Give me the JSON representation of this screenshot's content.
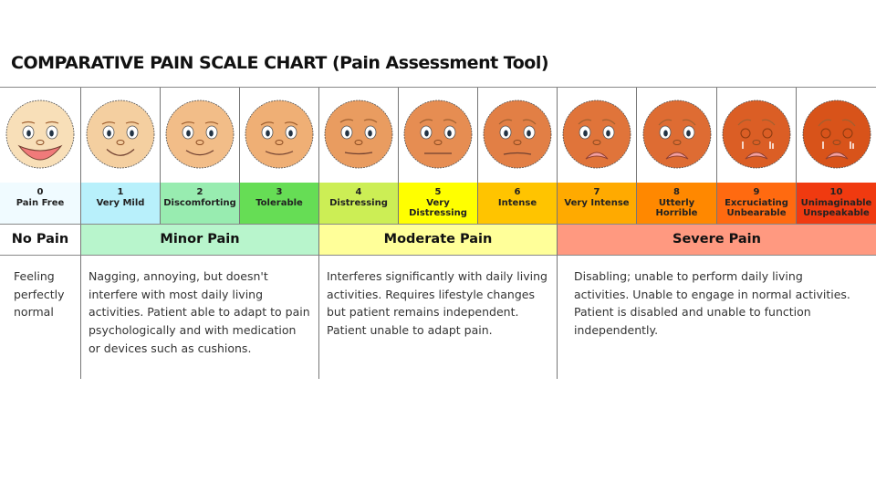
{
  "title": "COMPARATIVE PAIN SCALE CHART (Pain Assessment Tool)",
  "levels": [
    {
      "num": "0",
      "label": "Pain Free",
      "bg": "#f0fbff",
      "face": "#f8dfb8"
    },
    {
      "num": "1",
      "label": "Very Mild",
      "bg": "#b8f0fb",
      "face": "#f4cfa0"
    },
    {
      "num": "2",
      "label": "Discomforting",
      "bg": "#98ecb0",
      "face": "#f2bd88"
    },
    {
      "num": "3",
      "label": "Tolerable",
      "bg": "#66dd55",
      "face": "#efaf75"
    },
    {
      "num": "4",
      "label": "Distressing",
      "bg": "#ccee55",
      "face": "#e99c60"
    },
    {
      "num": "5",
      "label": "Very Distressing",
      "bg": "#ffff00",
      "face": "#e68d52"
    },
    {
      "num": "6",
      "label": "Intense",
      "bg": "#ffc400",
      "face": "#e27f45"
    },
    {
      "num": "7",
      "label": "Very Intense",
      "bg": "#ffaa00",
      "face": "#e0743a"
    },
    {
      "num": "8",
      "label": "Utterly Horrible",
      "bg": "#ff8800",
      "face": "#de6c33"
    },
    {
      "num": "9",
      "label": "Excruciating Unbearable",
      "bg": "#ff6a10",
      "face": "#db5e25"
    },
    {
      "num": "10",
      "label": "Unimaginable Unspeakable",
      "bg": "#f03a10",
      "face": "#d8531a"
    }
  ],
  "categories": [
    {
      "label": "No Pain",
      "bg": "#ffffff",
      "description": "Feeling perfectly normal"
    },
    {
      "label": "Minor Pain",
      "bg": "#b8f5cc",
      "description": "Nagging, annoying, but doesn't interfere with most daily living activities. Patient able to adapt to pain psychologically and with medication or devices such as cushions."
    },
    {
      "label": "Moderate Pain",
      "bg": "#ffff99",
      "description": "Interferes significantly with daily living activities. Requires lifestyle changes but patient remains independent. Patient unable to adapt pain."
    },
    {
      "label": "Severe Pain",
      "bg": "#ff9980",
      "description": "Disabling; unable to perform daily living activities. Unable to engage in normal activities. Patient is disabled and unable to function independently."
    }
  ]
}
